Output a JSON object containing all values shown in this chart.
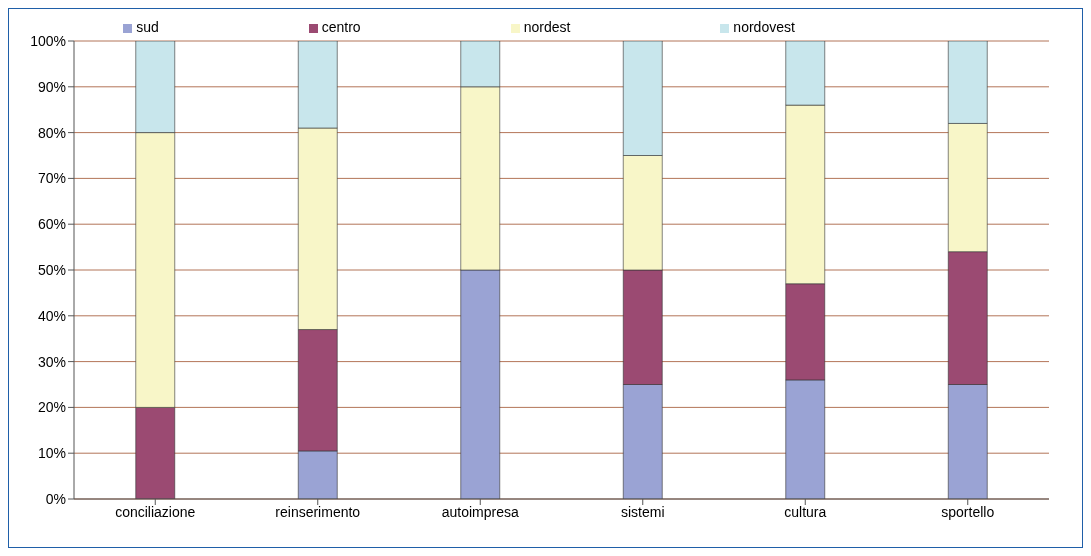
{
  "chart_data": {
    "type": "bar",
    "stacked": true,
    "categories": [
      "conciliazione",
      "reinserimento",
      "autoimpresa",
      "sistemi",
      "cultura",
      "sportello"
    ],
    "series": [
      {
        "name": "sud",
        "color": "#9aa3d4",
        "values": [
          0,
          10.5,
          50,
          25,
          26,
          25
        ]
      },
      {
        "name": "centro",
        "color": "#9b4a72",
        "values": [
          20,
          26.5,
          0,
          25,
          21,
          29
        ]
      },
      {
        "name": "nordest",
        "color": "#f8f6c8",
        "values": [
          60,
          44,
          40,
          25,
          39,
          28
        ]
      },
      {
        "name": "nordovest",
        "color": "#c8e6ec",
        "values": [
          20,
          19,
          10,
          25,
          14,
          18
        ]
      }
    ],
    "ylim": [
      0,
      100
    ],
    "yticks": [
      {
        "value": 0,
        "label": "0%"
      },
      {
        "value": 10,
        "label": "10%"
      },
      {
        "value": 20,
        "label": "20%"
      },
      {
        "value": 30,
        "label": "30%"
      },
      {
        "value": 40,
        "label": "40%"
      },
      {
        "value": 50,
        "label": "50%"
      },
      {
        "value": 60,
        "label": "60%"
      },
      {
        "value": 70,
        "label": "70%"
      },
      {
        "value": 80,
        "label": "80%"
      },
      {
        "value": 90,
        "label": "90%"
      },
      {
        "value": 100,
        "label": "100%"
      }
    ],
    "grid": "y",
    "legend": "top"
  }
}
